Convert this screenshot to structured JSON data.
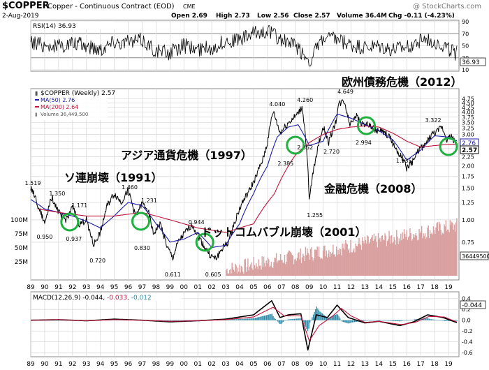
{
  "header": {
    "symbol": "$COPPER",
    "name": "Copper - Continuous Contract (EOD)",
    "exchange": "CME",
    "date": "2-Aug-2019",
    "open": "Open 2.69",
    "high": "High 2.73",
    "low": "Low 2.56",
    "close": "Close 2.57",
    "volume": "Volume 36.4M",
    "chg": "Chg -0.11 (-4.23%)",
    "watermark": "@ StockCharts.com"
  },
  "colors": {
    "price": "#000000",
    "ma50": "#1a1aa6",
    "ma200": "#c0143c",
    "volume": "#d9a0a0",
    "macd_hist": "#2d8aa8",
    "macd_line": "#000000",
    "signal_line": "#c0143c",
    "circle": "#20b040",
    "grid": "#d6d6d6"
  },
  "chart_data": [
    {
      "type": "line",
      "panel": "rsi",
      "label": "RSI(14) 36.93",
      "last_value": "36.93",
      "ylim": [
        10,
        90
      ],
      "ticks": [
        "90",
        "70",
        "50",
        "30",
        "10"
      ],
      "series": [
        {
          "name": "RSI(14)",
          "x": [
            1989,
            1990,
            1991,
            1992,
            1993,
            1994,
            1995,
            1996,
            1997,
            1998,
            1999,
            2000,
            2001,
            2002,
            2003,
            2004,
            2005,
            2006,
            2007,
            2008,
            2009,
            2010,
            2011,
            2012,
            2013,
            2014,
            2015,
            2016,
            2017,
            2018,
            2019.6
          ],
          "values": [
            55,
            52,
            48,
            54,
            50,
            45,
            58,
            55,
            60,
            42,
            38,
            50,
            44,
            46,
            58,
            60,
            70,
            76,
            60,
            50,
            25,
            62,
            60,
            50,
            46,
            48,
            42,
            46,
            60,
            58,
            37
          ]
        }
      ]
    },
    {
      "type": "line",
      "panel": "price",
      "legend": [
        {
          "label": "$COPPER (Weekly) 2.57",
          "color": "#000000"
        },
        {
          "label": "MA(50) 2.76",
          "color": "#1a1aa6"
        },
        {
          "label": "MA(200) 2.64",
          "color": "#c0143c"
        },
        {
          "label": "Volume 36,449,500",
          "color": "#888888"
        }
      ],
      "ylim_log": [
        0.5,
        4.9
      ],
      "right_ticks": [
        "4.75",
        "4.50",
        "4.25",
        "4.00",
        "3.75",
        "3.50",
        "3.25",
        "3.00",
        "2.75",
        "2.50",
        "2.25",
        "2.00",
        "1.75",
        "1.50",
        "1.25",
        "1.00",
        "0.75"
      ],
      "current_labels": [
        "2.76",
        "2.57"
      ],
      "volume_ticks": [
        "100M",
        "75M",
        "50M",
        "25M"
      ],
      "volume_current": "36449500",
      "series": [
        {
          "name": "$COPPER",
          "x": [
            1989.0,
            1989.6,
            1990.0,
            1990.5,
            1991.0,
            1991.5,
            1992.0,
            1992.5,
            1993.0,
            1993.5,
            1994.0,
            1994.5,
            1995.0,
            1995.5,
            1996.0,
            1996.5,
            1997.0,
            1997.4,
            1997.8,
            1998.3,
            1998.8,
            1999.2,
            1999.6,
            2000.1,
            2000.6,
            2001.0,
            2001.5,
            2001.9,
            2002.3,
            2002.8,
            2003.2,
            2003.7,
            2004.2,
            2004.7,
            2005.2,
            2005.7,
            2006.0,
            2006.4,
            2006.9,
            2007.3,
            2007.7,
            2008.1,
            2008.5,
            2008.9,
            2009.0,
            2009.5,
            2010.0,
            2010.4,
            2010.9,
            2011.1,
            2011.5,
            2011.9,
            2012.3,
            2012.8,
            2013.2,
            2013.7,
            2014.2,
            2014.7,
            2015.2,
            2015.7,
            2016.0,
            2016.5,
            2016.9,
            2017.3,
            2017.8,
            2018.2,
            2018.5,
            2018.9,
            2019.2,
            2019.6
          ],
          "values": [
            1.52,
            1.15,
            0.95,
            1.35,
            1.1,
            1.0,
            1.17,
            0.94,
            1.0,
            0.72,
            0.85,
            1.2,
            1.4,
            1.25,
            1.46,
            1.05,
            1.231,
            1.15,
            0.83,
            0.95,
            0.7,
            0.611,
            0.75,
            0.85,
            0.944,
            0.82,
            0.7,
            0.63,
            0.605,
            0.7,
            0.75,
            1.0,
            1.25,
            1.45,
            1.75,
            2.2,
            2.7,
            4.04,
            3.05,
            3.35,
            3.6,
            3.85,
            4.26,
            1.9,
            1.255,
            2.3,
            3.3,
            2.72,
            3.5,
            4.4,
            4.649,
            3.4,
            3.85,
            3.45,
            3.4,
            3.2,
            3.1,
            2.95,
            2.5,
            2.2,
            1.945,
            2.15,
            2.5,
            2.6,
            3.0,
            3.1,
            3.322,
            2.8,
            2.95,
            2.57
          ]
        },
        {
          "name": "MA(50)",
          "x": [
            1989.0,
            1990.0,
            1991.0,
            1992.0,
            1993.0,
            1994.0,
            1995.0,
            1996.0,
            1997.0,
            1998.0,
            1999.0,
            2000.0,
            2001.0,
            2002.0,
            2003.0,
            2004.0,
            2005.0,
            2006.0,
            2006.7,
            2007.5,
            2008.2,
            2009.0,
            2010.0,
            2011.0,
            2012.0,
            2013.0,
            2014.0,
            2015.0,
            2016.0,
            2017.0,
            2018.0,
            2019.0,
            2019.6
          ],
          "values": [
            1.3,
            1.15,
            1.1,
            1.05,
            0.98,
            0.9,
            1.05,
            1.25,
            1.2,
            0.95,
            0.75,
            0.78,
            0.85,
            0.7,
            0.72,
            0.95,
            1.4,
            2.0,
            2.9,
            3.3,
            3.4,
            2.6,
            2.75,
            3.9,
            3.7,
            3.4,
            3.15,
            2.8,
            2.15,
            2.45,
            2.95,
            2.9,
            2.76
          ]
        },
        {
          "name": "MA(200)",
          "x": [
            1989.5,
            1991.0,
            1993.0,
            1995.0,
            1997.0,
            1999.0,
            2001.0,
            2003.0,
            2005.0,
            2006.5,
            2008.0,
            2009.0,
            2010.0,
            2011.0,
            2012.0,
            2013.0,
            2014.0,
            2015.0,
            2016.0,
            2017.0,
            2018.0,
            2019.0,
            2019.6
          ],
          "values": [
            1.15,
            1.1,
            1.05,
            1.05,
            1.1,
            1.0,
            0.9,
            0.85,
            0.95,
            1.4,
            2.3,
            2.7,
            3.0,
            3.2,
            3.3,
            3.35,
            3.3,
            3.05,
            2.75,
            2.55,
            2.6,
            2.64,
            2.64
          ]
        }
      ],
      "price_labels": [
        "1.519",
        "1.350",
        "1.171",
        "0.950",
        "0.937",
        "0.720",
        "1.460",
        "1.231",
        "0.830",
        "0.611",
        "0.944",
        "0.605",
        "4.040",
        "2.385",
        "4.260",
        "2.852",
        "1.255",
        "2.720",
        "4.649",
        "2.994",
        "1.935",
        "3.322"
      ],
      "annotations": [
        "欧州債務危機（2012）",
        "アジア通貨危機（1997）",
        "ソ連崩壊（1991）",
        "金融危機（2008）",
        "ドットコムバブル崩壊（2001）"
      ]
    },
    {
      "type": "line",
      "panel": "macd",
      "label": "MACD(12,26,9) -0.044, -0.033, -0.012",
      "label_parts": {
        "title": "MACD(12,26,9)",
        "macd": "-0.044,",
        "signal": "-0.033,",
        "hist": "-0.012"
      },
      "ylim": [
        -0.65,
        0.5
      ],
      "ticks": [
        "0.4",
        "0.2",
        "0.0",
        "-0.2",
        "-0.4",
        "-0.6"
      ],
      "last_value": "-0.044",
      "series": [
        {
          "name": "MACD",
          "x": [
            1989,
            1991,
            1993,
            1995,
            1997,
            1999,
            2001,
            2003,
            2005,
            2006.3,
            2006.9,
            2007.5,
            2008.4,
            2008.9,
            2009.5,
            2010.3,
            2011.0,
            2011.8,
            2013,
            2014,
            2015.5,
            2016.5,
            2017.5,
            2018.6,
            2019.6
          ],
          "values": [
            0.0,
            0.01,
            -0.01,
            0.02,
            0.0,
            -0.03,
            -0.01,
            0.02,
            0.1,
            0.36,
            0.05,
            0.1,
            0.12,
            -0.55,
            0.1,
            0.05,
            0.28,
            0.05,
            -0.05,
            -0.02,
            -0.1,
            -0.03,
            0.1,
            0.05,
            -0.044
          ]
        },
        {
          "name": "Signal",
          "x": [
            1989,
            1991,
            1993,
            1995,
            1997,
            1999,
            2001,
            2003,
            2005,
            2006.4,
            2007.2,
            2008.4,
            2009.0,
            2009.7,
            2010.6,
            2011.3,
            2012.0,
            2013,
            2014,
            2015.6,
            2016.6,
            2017.6,
            2018.7,
            2019.6
          ],
          "values": [
            0.0,
            0.01,
            -0.01,
            0.01,
            0.0,
            -0.02,
            -0.01,
            0.01,
            0.06,
            0.24,
            0.08,
            0.08,
            -0.38,
            -0.1,
            0.06,
            0.22,
            0.08,
            -0.04,
            -0.02,
            -0.08,
            -0.04,
            0.07,
            0.06,
            -0.033
          ]
        }
      ]
    },
    {
      "type": "axis",
      "x_tick_labels": [
        "89",
        "90",
        "91",
        "92",
        "93",
        "94",
        "95",
        "96",
        "97",
        "98",
        "99",
        "00",
        "01",
        "02",
        "03",
        "04",
        "05",
        "06",
        "07",
        "08",
        "09",
        "10",
        "11",
        "12",
        "13",
        "14",
        "15",
        "16",
        "17",
        "18",
        "19"
      ]
    }
  ]
}
